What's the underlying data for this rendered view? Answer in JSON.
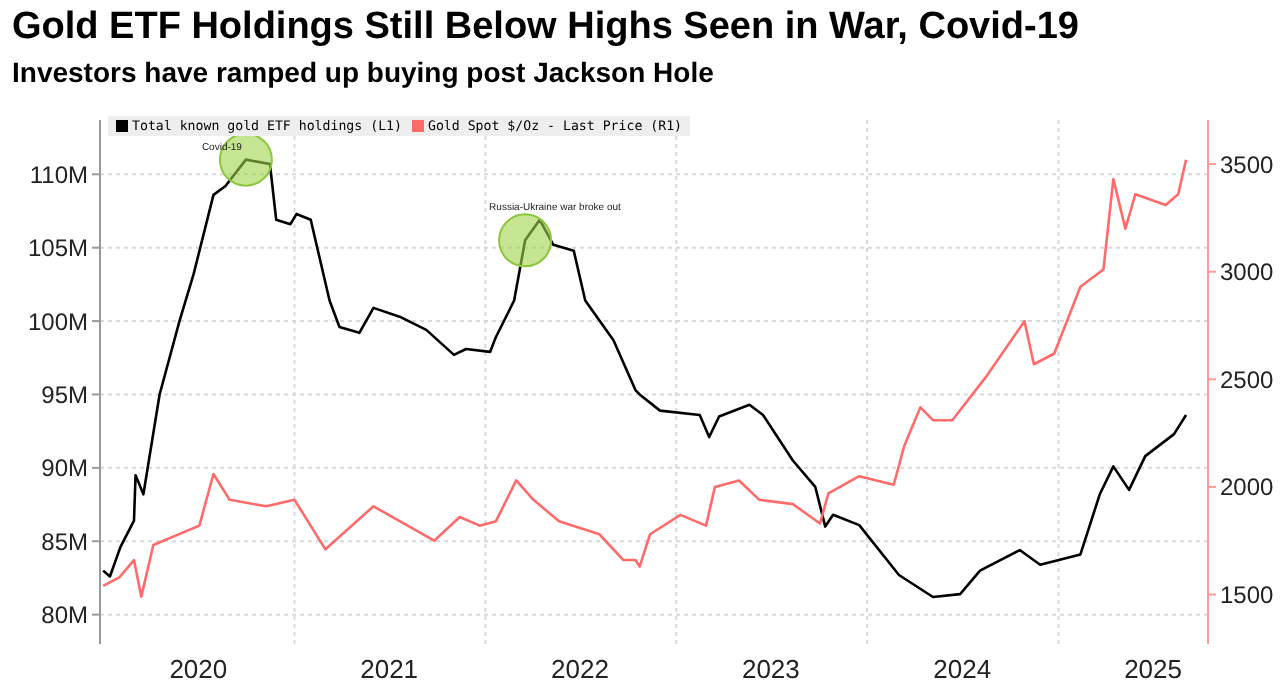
{
  "chart_data": {
    "type": "line",
    "title": "Gold ETF Holdings Still Below Highs Seen in War, Covid-19",
    "subtitle": "Investors have ramped up buying post Jackson Hole",
    "series": [
      {
        "name": "Total known gold ETF holdings (L1)",
        "color": "#000000",
        "x": [
          "2020-01-01",
          "2020-01-14",
          "2020-02-03",
          "2020-02-29",
          "2020-03-03",
          "2020-03-18",
          "2020-04-18",
          "2020-05-26",
          "2020-06-22",
          "2020-07-30",
          "2020-08-22",
          "2020-09-30",
          "2020-11-15",
          "2020-11-27",
          "2020-12-24",
          "2021-01-05",
          "2021-02-01",
          "2021-03-09",
          "2021-03-28",
          "2021-05-05",
          "2021-06-01",
          "2021-07-21",
          "2021-09-10",
          "2021-11-02",
          "2021-11-25",
          "2022-01-10",
          "2022-01-21",
          "2022-02-25",
          "2022-03-18",
          "2022-04-15",
          "2022-05-11",
          "2022-06-19",
          "2022-07-11",
          "2022-09-03",
          "2022-10-15",
          "2022-10-23",
          "2022-12-01",
          "2023-02-15",
          "2023-03-05",
          "2023-03-24",
          "2023-05-21",
          "2023-06-16",
          "2023-08-12",
          "2023-09-24",
          "2023-10-13",
          "2023-10-28",
          "2023-12-17",
          "2024-03-02",
          "2024-05-06",
          "2024-06-27",
          "2024-08-04",
          "2024-10-19",
          "2024-11-27",
          "2025-02-12",
          "2025-03-21",
          "2025-04-16",
          "2025-05-16",
          "2025-06-16",
          "2025-08-10",
          "2025-09-02"
        ],
        "values": [
          83.0,
          82.6,
          84.6,
          86.4,
          89.5,
          88.2,
          95.0,
          100.0,
          103.2,
          108.6,
          109.2,
          111.0,
          110.7,
          106.9,
          106.6,
          107.3,
          106.9,
          101.4,
          99.6,
          99.2,
          100.9,
          100.3,
          99.4,
          97.7,
          98.1,
          97.9,
          98.9,
          101.4,
          105.5,
          106.9,
          105.2,
          104.8,
          101.4,
          98.7,
          95.3,
          95.0,
          93.9,
          93.6,
          92.1,
          93.5,
          94.3,
          93.6,
          90.5,
          88.7,
          86.0,
          86.8,
          86.1,
          82.7,
          81.2,
          81.4,
          83.0,
          84.4,
          83.4,
          84.1,
          88.2,
          90.1,
          88.5,
          90.8,
          92.3,
          93.6
        ]
      },
      {
        "name": "Gold Spot $/Oz - Last Price (R1)",
        "color": "#ff6b6b",
        "axis": "y2",
        "x": [
          "2020-01-01",
          "2020-02-01",
          "2020-02-29",
          "2020-03-14",
          "2020-04-06",
          "2020-07-03",
          "2020-07-30",
          "2020-08-30",
          "2020-11-08",
          "2021-01-01",
          "2021-03-01",
          "2021-06-01",
          "2021-09-25",
          "2021-11-13",
          "2021-12-21",
          "2022-01-21",
          "2022-03-01",
          "2022-04-03",
          "2022-05-22",
          "2022-08-07",
          "2022-09-22",
          "2022-10-15",
          "2022-10-23",
          "2022-11-12",
          "2023-01-09",
          "2023-02-27",
          "2023-03-16",
          "2023-05-01",
          "2023-06-09",
          "2023-08-12",
          "2023-10-03",
          "2023-10-19",
          "2023-12-17",
          "2024-02-21",
          "2024-03-12",
          "2024-04-12",
          "2024-05-06",
          "2024-06-12",
          "2024-08-15",
          "2024-10-28",
          "2024-11-15",
          "2024-12-24",
          "2025-02-12",
          "2025-03-28",
          "2025-04-16",
          "2025-05-09",
          "2025-05-28",
          "2025-07-25",
          "2025-08-18",
          "2025-09-02"
        ],
        "values": [
          1540,
          1580,
          1660,
          1490,
          1730,
          1820,
          2060,
          1940,
          1910,
          1940,
          1710,
          1910,
          1750,
          1860,
          1820,
          1840,
          2030,
          1940,
          1840,
          1780,
          1660,
          1660,
          1630,
          1780,
          1870,
          1820,
          2000,
          2030,
          1940,
          1920,
          1830,
          1970,
          2050,
          2010,
          2190,
          2370,
          2310,
          2310,
          2510,
          2770,
          2570,
          2620,
          2930,
          3010,
          3430,
          3200,
          3360,
          3310,
          3360,
          3520
        ]
      }
    ],
    "xlim": [
      "2019-12-26",
      "2025-10-14"
    ],
    "xticks": [
      {
        "value": "2020-07-01",
        "label": "2020"
      },
      {
        "value": "2021-01-01",
        "label": null
      },
      {
        "value": "2021-07-01",
        "label": "2021"
      },
      {
        "value": "2022-01-01",
        "label": null
      },
      {
        "value": "2022-07-01",
        "label": "2022"
      },
      {
        "value": "2023-01-01",
        "label": null
      },
      {
        "value": "2023-07-01",
        "label": "2023"
      },
      {
        "value": "2024-01-01",
        "label": null
      },
      {
        "value": "2024-07-01",
        "label": "2024"
      },
      {
        "value": "2025-01-01",
        "label": null
      },
      {
        "value": "2025-07-01",
        "label": "2025"
      }
    ],
    "ylim": [
      78,
      113.7
    ],
    "yticks": [
      {
        "value": 80,
        "label": "80M"
      },
      {
        "value": 85,
        "label": "85M"
      },
      {
        "value": 90,
        "label": "90M"
      },
      {
        "value": 95,
        "label": "95M"
      },
      {
        "value": 100,
        "label": "100M"
      },
      {
        "value": 105,
        "label": "105M"
      },
      {
        "value": 110,
        "label": "110M"
      }
    ],
    "y2lim": [
      1270,
      3705
    ],
    "y2ticks": [
      1500,
      2000,
      2500,
      3000,
      3500
    ],
    "annotations": [
      {
        "text": "Covid-19",
        "x": "2020-09-30",
        "y": 111
      },
      {
        "text": "Russia-Ukraine war broke out",
        "x": "2022-03-18",
        "y": 105.5
      }
    ],
    "grid": true,
    "legend": "top left",
    "line_style": "solid"
  }
}
